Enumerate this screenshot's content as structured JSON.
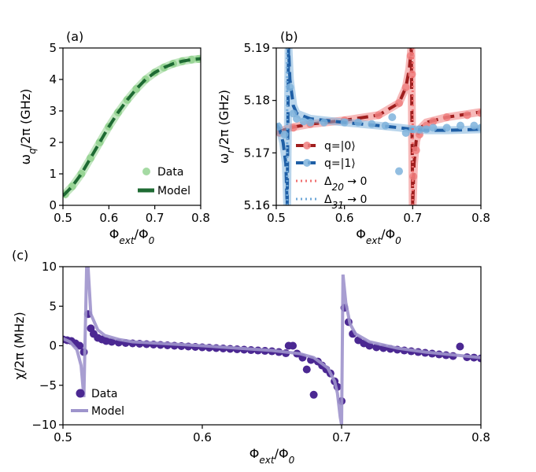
{
  "colors": {
    "green_data": "#8fd18c",
    "green_model": "#1e6b33",
    "red_data": "#f08080",
    "red_model": "#a01f1f",
    "blue_data": "#7fb3dc",
    "blue_model": "#1f5fa6",
    "red_dotted": "#f07070",
    "blue_dotted": "#6fa8d8",
    "purple_data": "#4b2892",
    "purple_model": "#9e94cc"
  },
  "chart_data": [
    {
      "panel": "(a)",
      "type": "line",
      "title": "",
      "xlabel": "Φ_ext/Φ_0",
      "ylabel": "ω_q/2π (GHz)",
      "xlim": [
        0.5,
        0.8
      ],
      "ylim": [
        0,
        5
      ],
      "xticks": [
        "0.5",
        "0.6",
        "0.7",
        "0.8"
      ],
      "yticks": [
        "0",
        "1",
        "2",
        "3",
        "4",
        "5"
      ],
      "legend_position": "lower-right",
      "series": [
        {
          "name": "Data",
          "style": "markers",
          "x": [
            0.505,
            0.52,
            0.54,
            0.56,
            0.58,
            0.6,
            0.62,
            0.64,
            0.66,
            0.68,
            0.7,
            0.72,
            0.74,
            0.76,
            0.78,
            0.795
          ],
          "y": [
            0.35,
            0.6,
            1.0,
            1.5,
            2.0,
            2.5,
            2.95,
            3.35,
            3.7,
            4.0,
            4.22,
            4.38,
            4.5,
            4.58,
            4.63,
            4.65
          ]
        },
        {
          "name": "Model",
          "style": "dashed-line",
          "x": [
            0.5,
            0.52,
            0.54,
            0.56,
            0.58,
            0.6,
            0.62,
            0.64,
            0.66,
            0.68,
            0.7,
            0.72,
            0.74,
            0.76,
            0.78,
            0.8
          ],
          "y": [
            0.3,
            0.6,
            1.0,
            1.5,
            2.0,
            2.5,
            2.95,
            3.35,
            3.7,
            4.0,
            4.22,
            4.38,
            4.5,
            4.58,
            4.63,
            4.66
          ]
        }
      ],
      "legend": [
        "Data",
        "Model"
      ]
    },
    {
      "panel": "(b)",
      "type": "line",
      "title": "",
      "xlabel": "Φ_ext/Φ_0",
      "ylabel": "ω_r/2π (GHz)",
      "xlim": [
        0.5,
        0.8
      ],
      "ylim": [
        5.16,
        5.19
      ],
      "xticks": [
        "0.5",
        "0.6",
        "0.7",
        "0.8"
      ],
      "yticks": [
        "5.16",
        "5.17",
        "5.18",
        "5.19"
      ],
      "legend_position": "lower-right",
      "series": [
        {
          "name": "q=|0⟩ model",
          "style": "dashed-line",
          "color": "red",
          "x": [
            0.5,
            0.52,
            0.55,
            0.6,
            0.65,
            0.68,
            0.69,
            0.695,
            0.698,
            0.7,
            0.702,
            0.705,
            0.71,
            0.72,
            0.75,
            0.8
          ],
          "y": [
            5.1738,
            5.1748,
            5.1755,
            5.1762,
            5.1772,
            5.1795,
            5.1825,
            5.186,
            5.19,
            5.16,
            5.168,
            5.1722,
            5.1745,
            5.1758,
            5.1768,
            5.1778
          ]
        },
        {
          "name": "q=|0⟩",
          "style": "markers",
          "color": "red",
          "x": [
            0.505,
            0.525,
            0.55,
            0.6,
            0.65,
            0.68,
            0.69,
            0.697,
            0.699,
            0.701,
            0.705,
            0.71,
            0.72,
            0.73,
            0.75,
            0.78,
            0.8
          ],
          "y": [
            5.1738,
            5.1748,
            5.1755,
            5.1762,
            5.1772,
            5.1795,
            5.1825,
            5.1885,
            5.185,
            5.1655,
            5.1705,
            5.1735,
            5.1752,
            5.176,
            5.1768,
            5.1772,
            5.1776
          ]
        },
        {
          "name": "q=|1⟩ model",
          "style": "dashed-line",
          "color": "blue",
          "x": [
            0.5,
            0.505,
            0.51,
            0.514,
            0.516,
            0.518,
            0.52,
            0.525,
            0.53,
            0.55,
            0.6,
            0.65,
            0.68,
            0.7,
            0.72,
            0.75,
            0.8
          ],
          "y": [
            5.1755,
            5.1745,
            5.172,
            5.168,
            5.16,
            5.19,
            5.184,
            5.179,
            5.1775,
            5.1765,
            5.1758,
            5.1752,
            5.1748,
            5.1745,
            5.1743,
            5.1743,
            5.1745
          ]
        },
        {
          "name": "q=|1⟩",
          "style": "markers",
          "color": "blue",
          "x": [
            0.503,
            0.512,
            0.52,
            0.525,
            0.53,
            0.54,
            0.55,
            0.57,
            0.6,
            0.62,
            0.64,
            0.66,
            0.67,
            0.68,
            0.69,
            0.7,
            0.71,
            0.72,
            0.73,
            0.75,
            0.77,
            0.79,
            0.8
          ],
          "y": [
            5.175,
            5.1735,
            5.1825,
            5.1775,
            5.1765,
            5.176,
            5.1758,
            5.1758,
            5.1758,
            5.1758,
            5.1755,
            5.1752,
            5.1768,
            5.1665,
            5.1738,
            5.1745,
            5.1745,
            5.1745,
            5.1748,
            5.1748,
            5.1752,
            5.1752,
            5.1748
          ]
        },
        {
          "name": "Δ20 → 0",
          "style": "dotted-vline",
          "color": "red",
          "x": [
            0.7,
            0.7
          ],
          "y": [
            5.16,
            5.19
          ]
        },
        {
          "name": "Δ31 → 0",
          "style": "dotted-vline",
          "color": "blue",
          "x": [
            0.516,
            0.516
          ],
          "y": [
            5.16,
            5.19
          ]
        }
      ],
      "legend": [
        "q=|0⟩",
        "q=|1⟩",
        "Δ20 → 0",
        "Δ31 → 0"
      ]
    },
    {
      "panel": "(c)",
      "type": "scatter",
      "title": "",
      "xlabel": "Φ_ext/Φ_0",
      "ylabel": "χ/2π (MHz)",
      "xlim": [
        0.5,
        0.8
      ],
      "ylim": [
        -10,
        10
      ],
      "xticks": [
        "0.5",
        "0.6",
        "0.7",
        "0.8"
      ],
      "yticks": [
        "−10",
        "−5",
        "0",
        "5",
        "10"
      ],
      "legend_position": "lower-left",
      "series": [
        {
          "name": "Data",
          "style": "markers",
          "x": [
            0.5,
            0.503,
            0.506,
            0.509,
            0.512,
            0.515,
            0.518,
            0.52,
            0.522,
            0.525,
            0.528,
            0.531,
            0.535,
            0.54,
            0.545,
            0.55,
            0.555,
            0.56,
            0.565,
            0.57,
            0.575,
            0.58,
            0.585,
            0.59,
            0.595,
            0.6,
            0.605,
            0.61,
            0.615,
            0.62,
            0.625,
            0.63,
            0.635,
            0.64,
            0.645,
            0.65,
            0.655,
            0.66,
            0.662,
            0.665,
            0.668,
            0.672,
            0.675,
            0.678,
            0.68,
            0.683,
            0.686,
            0.689,
            0.692,
            0.695,
            0.697,
            0.7,
            0.702,
            0.705,
            0.708,
            0.712,
            0.716,
            0.72,
            0.725,
            0.73,
            0.735,
            0.74,
            0.745,
            0.75,
            0.755,
            0.76,
            0.765,
            0.77,
            0.775,
            0.78,
            0.785,
            0.79,
            0.795,
            0.8
          ],
          "y": [
            0.8,
            0.7,
            0.6,
            0.3,
            0.0,
            -0.8,
            4.0,
            2.2,
            1.5,
            1.0,
            0.8,
            0.6,
            0.5,
            0.4,
            0.35,
            0.3,
            0.25,
            0.2,
            0.15,
            0.1,
            0.05,
            0.0,
            -0.05,
            -0.1,
            -0.15,
            -0.2,
            -0.25,
            -0.3,
            -0.35,
            -0.4,
            -0.45,
            -0.5,
            -0.55,
            -0.6,
            -0.65,
            -0.7,
            -0.8,
            -0.95,
            0.0,
            0.0,
            -1.0,
            -1.5,
            -3.0,
            -1.8,
            -6.2,
            -2.0,
            -2.5,
            -3.0,
            -3.5,
            -4.5,
            -5.2,
            -7.0,
            4.8,
            3.0,
            1.5,
            0.7,
            0.3,
            0.0,
            -0.2,
            -0.3,
            -0.4,
            -0.5,
            -0.6,
            -0.7,
            -0.8,
            -0.9,
            -1.0,
            -1.1,
            -1.2,
            -1.3,
            -0.1,
            -1.45,
            -1.5,
            -1.6
          ]
        },
        {
          "name": "Model",
          "style": "line",
          "x": [
            0.5,
            0.505,
            0.51,
            0.513,
            0.515,
            0.517,
            0.518,
            0.52,
            0.525,
            0.53,
            0.54,
            0.55,
            0.6,
            0.65,
            0.67,
            0.68,
            0.69,
            0.695,
            0.697,
            0.699,
            0.7,
            0.701,
            0.703,
            0.706,
            0.71,
            0.72,
            0.74,
            0.76,
            0.8
          ],
          "y": [
            0.9,
            0.5,
            -0.5,
            -2.5,
            -6.5,
            10,
            10,
            4.0,
            2.0,
            1.3,
            0.8,
            0.5,
            0.0,
            -0.6,
            -1.0,
            -1.5,
            -2.8,
            -4.5,
            -6.0,
            -9.0,
            -10,
            9.0,
            5.5,
            2.8,
            1.5,
            0.5,
            -0.3,
            -0.8,
            -1.5
          ]
        }
      ],
      "legend": [
        "Data",
        "Model"
      ]
    }
  ]
}
